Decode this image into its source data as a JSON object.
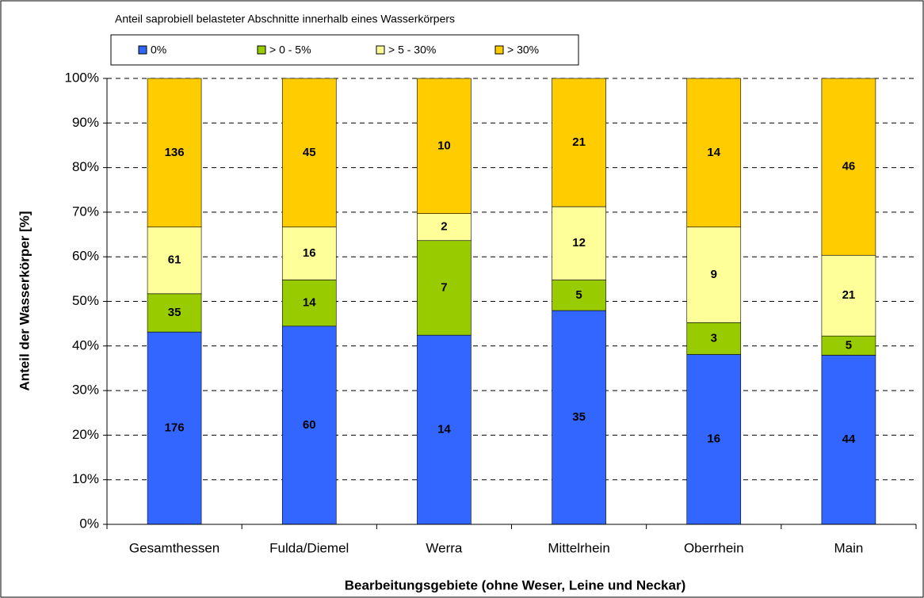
{
  "chart_data": {
    "type": "bar",
    "stacking": "percent",
    "legend_title": "Anteil saprobiell belasteter Abschnitte innerhalb eines Wasserkörpers",
    "xlabel": "Bearbeitungsgebiete (ohne Weser, Leine und Neckar)",
    "ylabel": "Anteil der Wasserkörper [%]",
    "categories": [
      "Gesamthessen",
      "Fulda/Diemel",
      "Werra",
      "Mittelrhein",
      "Oberrhein",
      "Main"
    ],
    "series": [
      {
        "name": "0%",
        "color": "#3366ff",
        "values": [
          176,
          60,
          14,
          35,
          16,
          44
        ]
      },
      {
        "name": "> 0 - 5%",
        "color": "#99cc00",
        "values": [
          35,
          14,
          7,
          5,
          3,
          5
        ]
      },
      {
        "name": "> 5 - 30%",
        "color": "#ffff99",
        "values": [
          61,
          16,
          2,
          12,
          9,
          21
        ]
      },
      {
        "name": "> 30%",
        "color": "#ffcc00",
        "values": [
          136,
          45,
          10,
          21,
          14,
          46
        ]
      }
    ],
    "ylim": [
      0,
      100
    ],
    "yticks": [
      {
        "value": 0,
        "label": "0%"
      },
      {
        "value": 10,
        "label": "10%"
      },
      {
        "value": 20,
        "label": "20%"
      },
      {
        "value": 30,
        "label": "30%"
      },
      {
        "value": 40,
        "label": "40%"
      },
      {
        "value": 50,
        "label": "50%"
      },
      {
        "value": 60,
        "label": "60%"
      },
      {
        "value": 70,
        "label": "70%"
      },
      {
        "value": 80,
        "label": "80%"
      },
      {
        "value": 90,
        "label": "90%"
      },
      {
        "value": 100,
        "label": "100%"
      }
    ],
    "grid": true
  }
}
